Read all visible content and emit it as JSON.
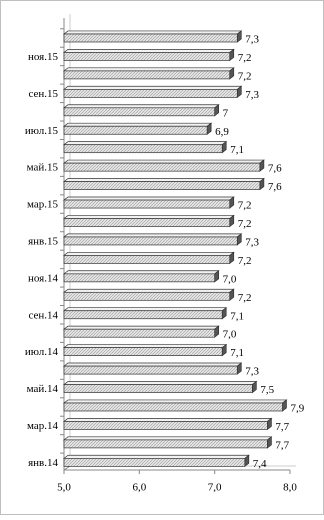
{
  "chart_data": {
    "type": "bar",
    "orientation": "horizontal",
    "categories": [
      null,
      "ноя.15",
      null,
      "сен.15",
      null,
      "июл.15",
      null,
      "май.15",
      null,
      "мар.15",
      null,
      "янв.15",
      null,
      "ноя.14",
      null,
      "сен.14",
      null,
      "июл.14",
      null,
      "май.14",
      null,
      "мар.14",
      null,
      "янв.14"
    ],
    "values": [
      7.3,
      7.2,
      7.2,
      7.3,
      7,
      6.9,
      7.1,
      7.6,
      7.6,
      7.2,
      7.2,
      7.3,
      7.2,
      7.0,
      7.2,
      7.1,
      7.0,
      7.1,
      7.3,
      7.5,
      7.9,
      7.7,
      7.7,
      7.4
    ],
    "value_labels": [
      "7,3",
      "7,2",
      "7,2",
      "7,3",
      "7",
      "6,9",
      "7,1",
      "7,6",
      "7,6",
      "7,2",
      "7,2",
      "7,3",
      "7,2",
      "7,0",
      "7,2",
      "7,1",
      "7,0",
      "7,1",
      "7,3",
      "7,5",
      "7,9",
      "7,7",
      "7,7",
      "7,4"
    ],
    "color": "#d9d9d9",
    "xlim": [
      5,
      8
    ],
    "xticks": [
      {
        "value": 5,
        "label": "5,0"
      },
      {
        "value": 6,
        "label": "6,0"
      },
      {
        "value": 7,
        "label": "7,0"
      },
      {
        "value": 8,
        "label": "8,0"
      }
    ]
  }
}
